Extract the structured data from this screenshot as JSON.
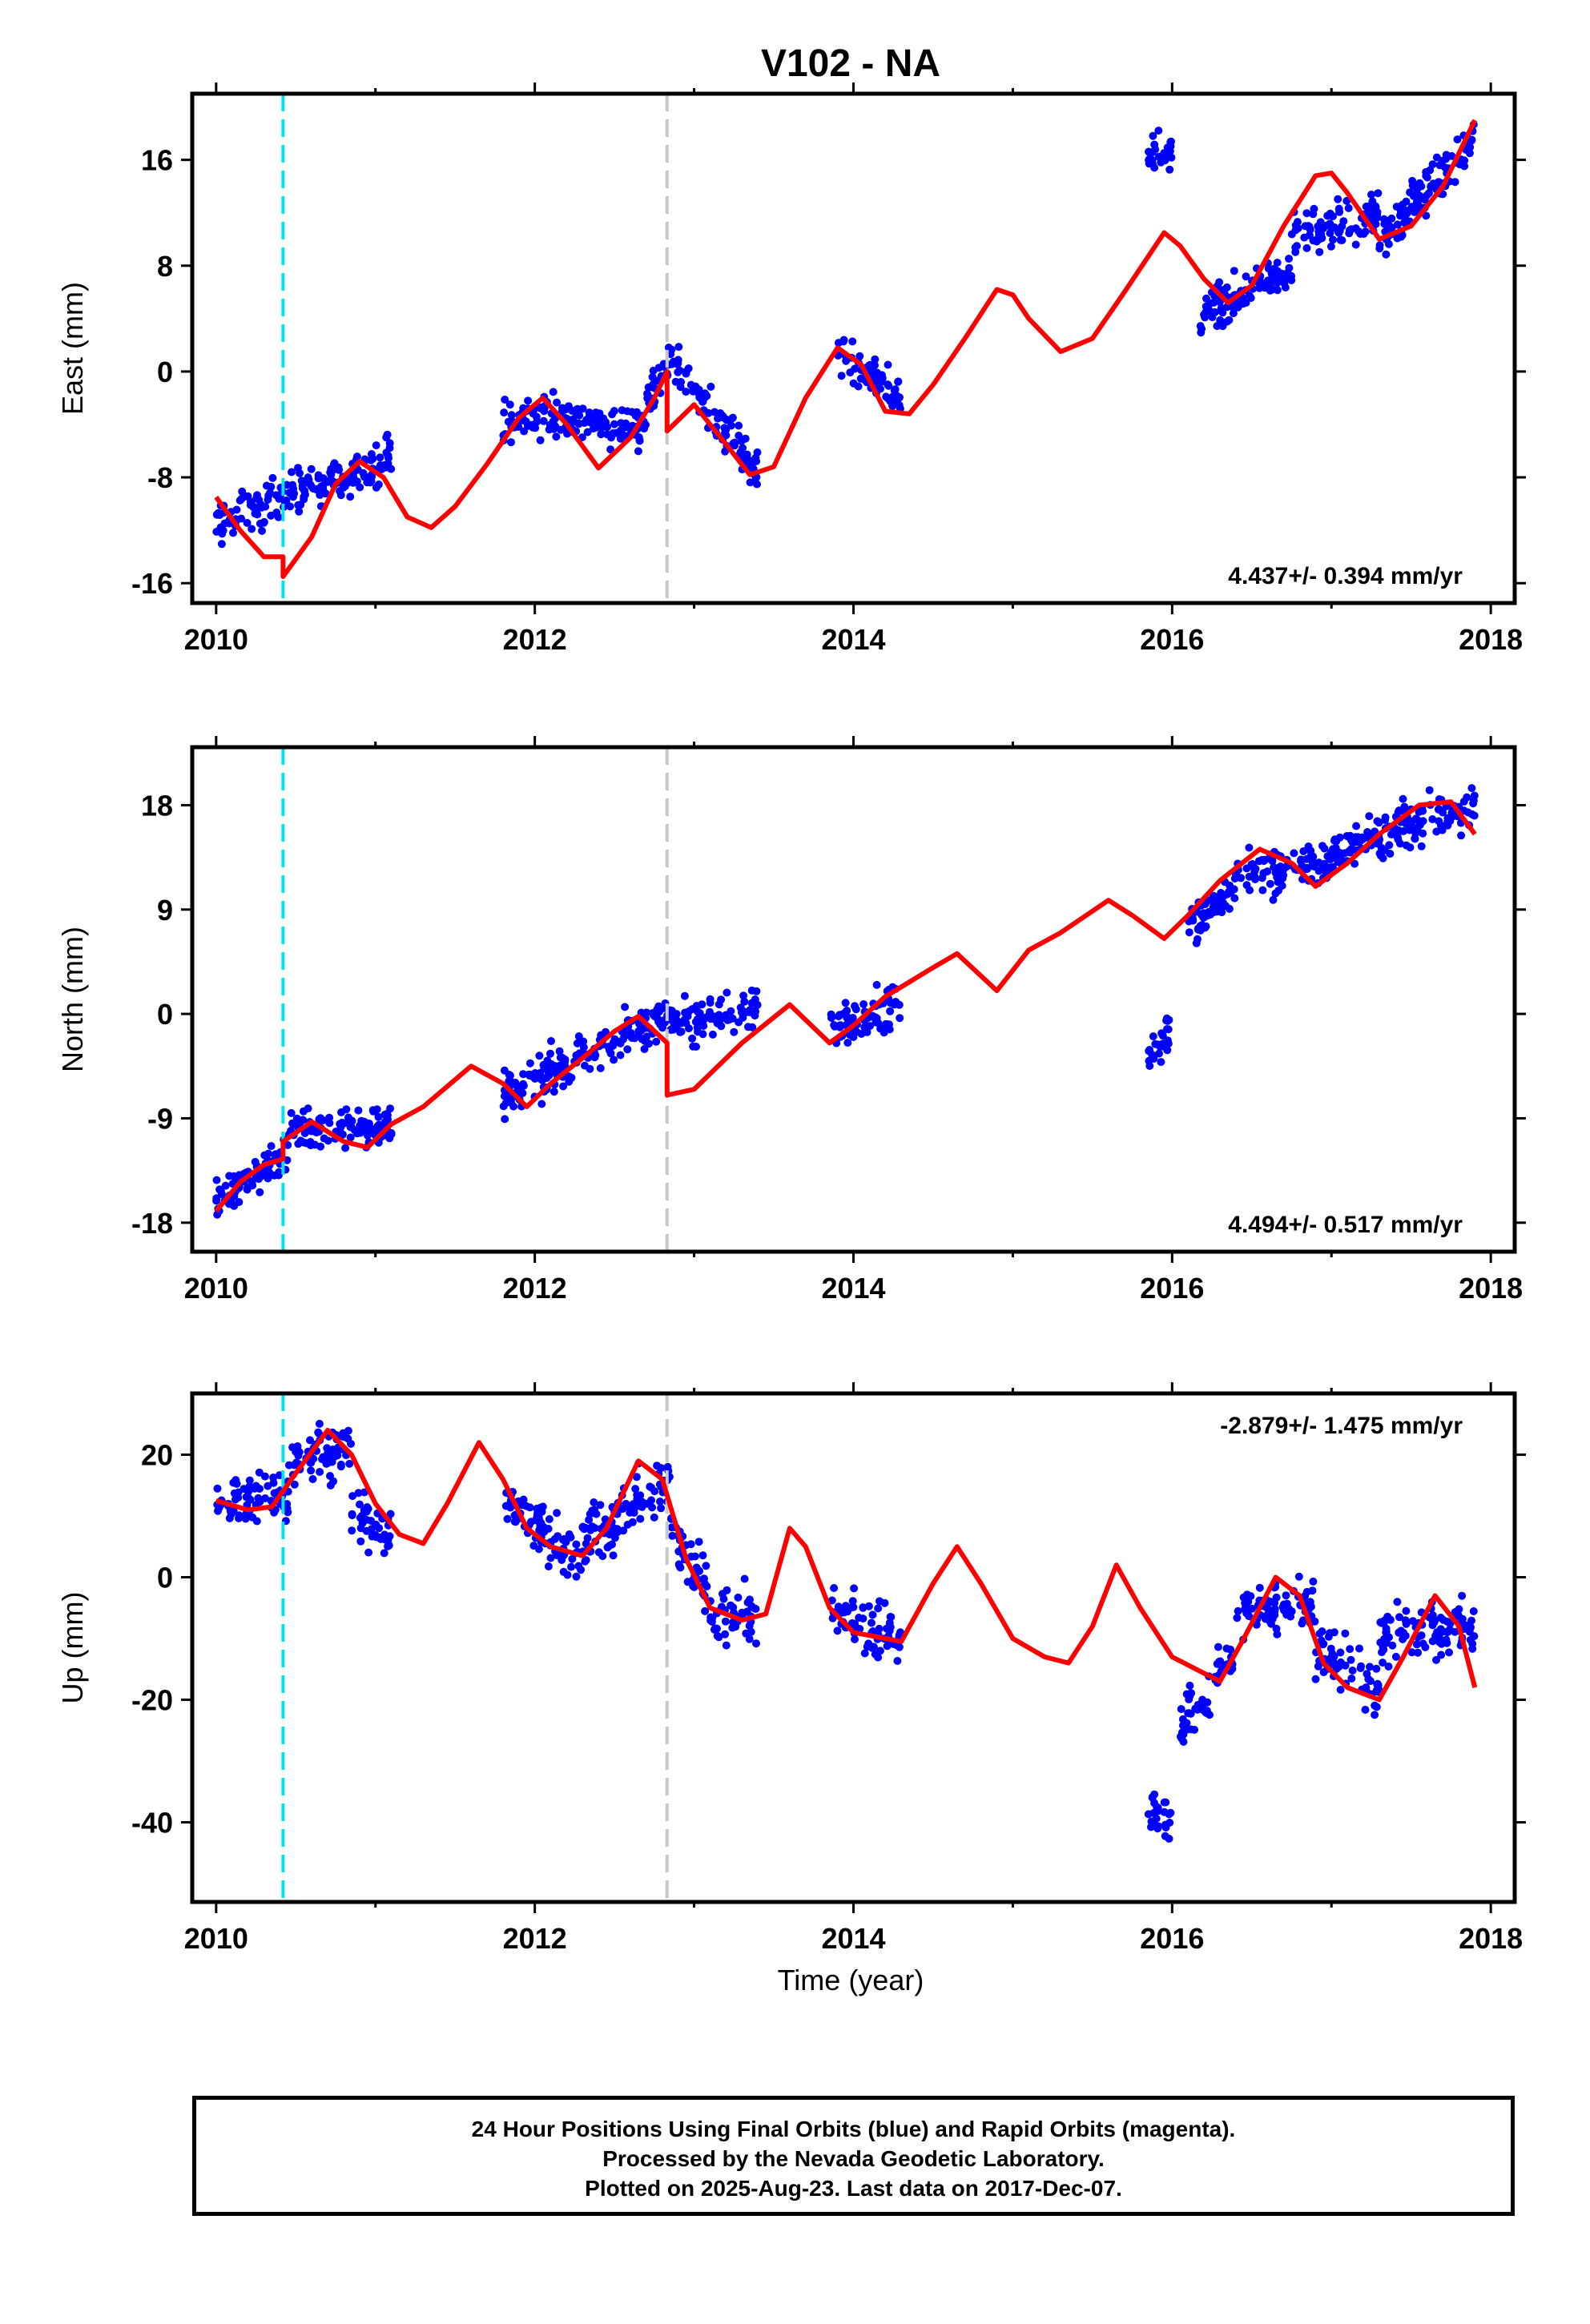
{
  "title": "V102 - NA",
  "footer": {
    "line1": "24 Hour Positions Using Final Orbits (blue) and Rapid Orbits (magenta).",
    "line2": "Processed by the Nevada Geodetic Laboratory.",
    "line3": "Plotted on 2025-Aug-23. Last data on 2017-Dec-07."
  },
  "colors": {
    "data": "#0000ff",
    "model": "#ff0000",
    "event1": "#00e5ee",
    "event2": "#c8c8c8",
    "axis": "#000000"
  },
  "events": [
    2010.42,
    2012.83
  ],
  "chart_data": [
    {
      "type": "scatter",
      "title": "V102 - NA",
      "ylabel": "East (mm)",
      "xlabel": "",
      "xlim": [
        2009.85,
        2018.15
      ],
      "ylim": [
        -17.5,
        21
      ],
      "xticks": [
        2010,
        2012,
        2014,
        2016,
        2018
      ],
      "yticks": [
        -16,
        -8,
        0,
        8,
        16
      ],
      "rate_label": "4.437+/- 0.394 mm/yr",
      "rate_pos": "bottom-right",
      "series": [
        {
          "kind": "points",
          "segments": [
            [
              2010.0,
              2011.1,
              -11.5,
              -6.5
            ],
            [
              2011.8,
              2012.7,
              -3.5,
              -4.0
            ],
            [
              2012.7,
              2012.85,
              -2,
              0.5
            ],
            [
              2012.85,
              2013.4,
              1,
              -7.5
            ],
            [
              2013.9,
              2014.3,
              1,
              -2
            ],
            [
              2015.85,
              2016.0,
              16,
              16.5
            ],
            [
              2016.15,
              2016.75,
              4,
              8
            ],
            [
              2016.75,
              2017.3,
              10,
              12
            ],
            [
              2017.3,
              2017.9,
              10,
              17.5
            ]
          ],
          "scatter_amp": 1.6
        },
        {
          "kind": "model",
          "x": [
            2010.0,
            2010.15,
            2010.3,
            2010.42,
            2010.42,
            2010.6,
            2010.75,
            2010.9,
            2011.05,
            2011.2,
            2011.35,
            2011.5,
            2011.7,
            2011.9,
            2012.05,
            2012.2,
            2012.4,
            2012.6,
            2012.75,
            2012.83,
            2012.83,
            2013.0,
            2013.2,
            2013.35,
            2013.5,
            2013.7,
            2013.9,
            2014.05,
            2014.2,
            2014.35,
            2014.5,
            2014.7,
            2014.9,
            2015.0,
            2015.1,
            2015.3,
            2015.5,
            2015.7,
            2015.95,
            2016.05,
            2016.2,
            2016.35,
            2016.5,
            2016.7,
            2016.9,
            2017.0,
            2017.1,
            2017.3,
            2017.5,
            2017.7,
            2017.9
          ],
          "y": [
            -9.5,
            -12,
            -14,
            -14,
            -15.5,
            -12.5,
            -8.5,
            -6.8,
            -8,
            -11,
            -11.8,
            -10.2,
            -7,
            -3.5,
            -2,
            -4,
            -7.3,
            -5,
            -2,
            0,
            -4.5,
            -2.5,
            -5.5,
            -7.8,
            -7.2,
            -2,
            1.8,
            0.5,
            -3,
            -3.2,
            -1,
            2.5,
            6.2,
            5.8,
            4,
            1.5,
            2.5,
            6,
            10.5,
            9.5,
            7,
            5.2,
            6.5,
            11,
            14.8,
            15,
            13.5,
            10,
            11,
            14,
            19
          ]
        }
      ]
    },
    {
      "type": "scatter",
      "ylabel": "North (mm)",
      "xlabel": "",
      "xlim": [
        2009.85,
        2018.15
      ],
      "ylim": [
        -20.5,
        23
      ],
      "xticks": [
        2010,
        2012,
        2014,
        2016,
        2018
      ],
      "yticks": [
        -18,
        -9,
        0,
        9,
        18
      ],
      "rate_label": "4.494+/- 0.517 mm/yr",
      "rate_pos": "bottom-right",
      "series": [
        {
          "kind": "points",
          "segments": [
            [
              2010.0,
              2010.45,
              -16,
              -12
            ],
            [
              2010.45,
              2011.1,
              -10,
              -9.5
            ],
            [
              2011.8,
              2012.85,
              -7,
              0
            ],
            [
              2012.85,
              2013.4,
              -1,
              0.5
            ],
            [
              2013.85,
              2014.3,
              -1,
              1
            ],
            [
              2015.85,
              2016.0,
              -4,
              -1
            ],
            [
              2016.1,
              2016.55,
              7,
              13
            ],
            [
              2016.55,
              2017.0,
              12,
              13
            ],
            [
              2017.0,
              2017.9,
              14,
              18
            ]
          ],
          "scatter_amp": 1.8
        },
        {
          "kind": "model",
          "x": [
            2010.0,
            2010.15,
            2010.3,
            2010.42,
            2010.42,
            2010.6,
            2010.8,
            2010.95,
            2011.1,
            2011.3,
            2011.6,
            2011.8,
            2011.95,
            2012.1,
            2012.3,
            2012.5,
            2012.65,
            2012.83,
            2012.83,
            2013.0,
            2013.3,
            2013.6,
            2013.85,
            2014.0,
            2014.2,
            2014.5,
            2014.65,
            2014.9,
            2015.1,
            2015.3,
            2015.6,
            2015.75,
            2015.95,
            2016.1,
            2016.3,
            2016.55,
            2016.75,
            2016.9,
            2017.1,
            2017.3,
            2017.55,
            2017.75,
            2017.9
          ],
          "y": [
            -17,
            -14.5,
            -13,
            -12.5,
            -11,
            -9.3,
            -11,
            -11.5,
            -9.5,
            -8,
            -4.5,
            -6,
            -8,
            -6,
            -3.8,
            -1.5,
            -0.2,
            -2.5,
            -7,
            -6.5,
            -2.5,
            0.8,
            -2.5,
            -1,
            1.5,
            4,
            5.2,
            2,
            5.5,
            7,
            9.8,
            8.5,
            6.5,
            8.5,
            11.5,
            14.2,
            13,
            11,
            13,
            15.5,
            18,
            18.3,
            15.5
          ]
        }
      ]
    },
    {
      "type": "scatter",
      "ylabel": "Up (mm)",
      "xlabel": "Time (year)",
      "xlim": [
        2009.85,
        2018.15
      ],
      "ylim": [
        -53,
        30
      ],
      "xticks": [
        2010,
        2012,
        2014,
        2016,
        2018
      ],
      "yticks": [
        -40,
        -20,
        0,
        20
      ],
      "rate_label": "-2.879+/- 1.475 mm/yr",
      "rate_pos": "top-right",
      "series": [
        {
          "kind": "points",
          "segments": [
            [
              2010.0,
              2010.45,
              12,
              13
            ],
            [
              2010.45,
              2010.85,
              18,
              22
            ],
            [
              2010.85,
              2011.1,
              12,
              5
            ],
            [
              2011.8,
              2012.3,
              12,
              3
            ],
            [
              2012.3,
              2012.85,
              6,
              16
            ],
            [
              2012.85,
              2013.1,
              8,
              -3
            ],
            [
              2013.1,
              2013.4,
              -6,
              -7
            ],
            [
              2013.85,
              2014.3,
              -5,
              -10
            ],
            [
              2015.85,
              2016.0,
              -37,
              -40
            ],
            [
              2016.05,
              2016.4,
              -25,
              -12
            ],
            [
              2016.4,
              2016.9,
              -5,
              -5
            ],
            [
              2016.9,
              2017.3,
              -12,
              -18
            ],
            [
              2017.3,
              2017.9,
              -10,
              -8
            ]
          ],
          "scatter_amp": 4.5
        },
        {
          "kind": "model",
          "x": [
            2010.0,
            2010.2,
            2010.35,
            2010.5,
            2010.7,
            2010.85,
            2011.0,
            2011.15,
            2011.3,
            2011.45,
            2011.65,
            2011.8,
            2011.95,
            2012.1,
            2012.3,
            2012.45,
            2012.65,
            2012.8,
            2012.95,
            2013.1,
            2013.3,
            2013.45,
            2013.6,
            2013.7,
            2013.85,
            2014.0,
            2014.2,
            2014.3,
            2014.5,
            2014.65,
            2014.8,
            2015.0,
            2015.2,
            2015.35,
            2015.5,
            2015.65,
            2015.8,
            2016.0,
            2016.15,
            2016.3,
            2016.45,
            2016.65,
            2016.8,
            2016.95,
            2017.1,
            2017.3,
            2017.45,
            2017.65,
            2017.8,
            2017.9
          ],
          "y": [
            12.5,
            11,
            11.5,
            17,
            24,
            20,
            12,
            7,
            5.5,
            12,
            22,
            16,
            8,
            5,
            3.5,
            8,
            19,
            16,
            3,
            -5,
            -7,
            -6,
            8,
            5,
            -5,
            -9,
            -10,
            -10.5,
            -1,
            5,
            -1,
            -10,
            -13,
            -14,
            -8,
            2,
            -5,
            -13,
            -15,
            -17,
            -10,
            0,
            -3,
            -14,
            -18,
            -20,
            -13,
            -3,
            -8,
            -18
          ]
        }
      ]
    }
  ]
}
